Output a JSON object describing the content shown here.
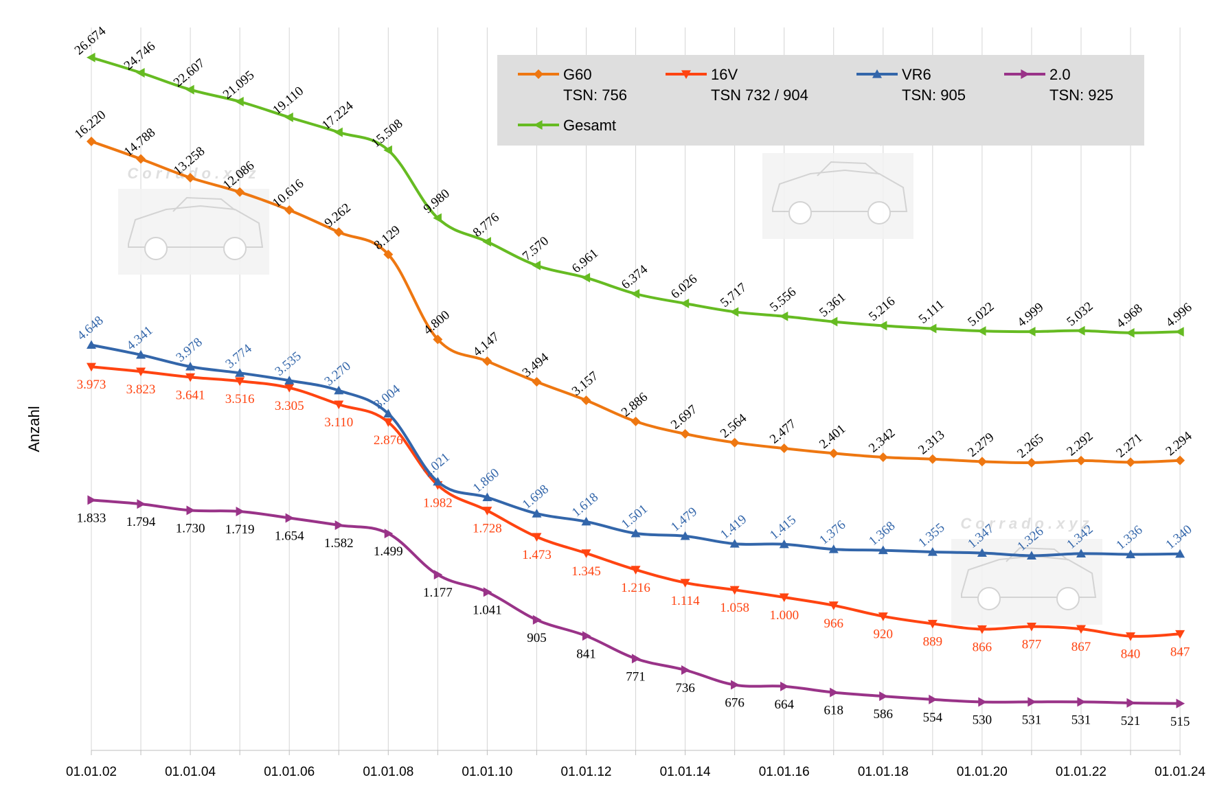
{
  "watermark": "Corrado.xyz",
  "chart_data": {
    "type": "line",
    "ylabel": "Anzahl",
    "xlabel": "",
    "x": [
      "01.01.02",
      "01.01.03",
      "01.01.04",
      "01.01.05",
      "01.01.06",
      "01.01.07",
      "01.01.08",
      "01.01.09",
      "01.01.10",
      "01.01.11",
      "01.01.12",
      "01.01.13",
      "01.01.14",
      "01.01.15",
      "01.01.16",
      "01.01.17",
      "01.01.18",
      "01.01.19",
      "01.01.20",
      "01.01.21",
      "01.01.22",
      "01.01.23",
      "01.01.24"
    ],
    "x_tick_labels": [
      "01.01.02",
      "",
      "01.01.04",
      "",
      "01.01.06",
      "",
      "01.01.08",
      "",
      "01.01.10",
      "",
      "01.01.12",
      "",
      "01.01.14",
      "",
      "01.01.16",
      "",
      "01.01.18",
      "",
      "01.01.20",
      "",
      "01.01.22",
      "",
      "01.01.24"
    ],
    "grid": "vertical",
    "legend_position": "top-right",
    "series": [
      {
        "key": "gesamt",
        "name": "Gesamt",
        "tsn": "",
        "color": "#66bb22",
        "label_color": "#000000",
        "marker": "tri-left",
        "label_pos": "above",
        "values": [
          26674,
          24746,
          22607,
          21095,
          19110,
          17224,
          15508,
          9980,
          8776,
          7570,
          6961,
          6374,
          6026,
          5717,
          5556,
          5361,
          5216,
          5111,
          5022,
          4999,
          5032,
          4968,
          4996
        ],
        "labels": [
          "26.674",
          "24.746",
          "22.607",
          "21.095",
          "19.110",
          "17.224",
          "15.508",
          "9.980",
          "8.776",
          "7.570",
          "6.961",
          "6.374",
          "6.026",
          "5.717",
          "5.556",
          "5.361",
          "5.216",
          "5.111",
          "5.022",
          "4.999",
          "5.032",
          "4.968",
          "4.996"
        ]
      },
      {
        "key": "g60",
        "name": "G60",
        "tsn": "TSN: 756",
        "color": "#ee7711",
        "label_color": "#000000",
        "marker": "diamond",
        "label_pos": "above",
        "values": [
          16220,
          14788,
          13258,
          12086,
          10616,
          9262,
          8129,
          4800,
          4147,
          3494,
          3157,
          2886,
          2697,
          2564,
          2477,
          2401,
          2342,
          2313,
          2279,
          2265,
          2292,
          2271,
          2294
        ],
        "labels": [
          "16.220",
          "14.788",
          "13.258",
          "12.086",
          "10.616",
          "9.262",
          "8.129",
          "4.800",
          "4.147",
          "3.494",
          "3.157",
          "2.886",
          "2.697",
          "2.564",
          "2.477",
          "2.401",
          "2.342",
          "2.313",
          "2.279",
          "2.265",
          "2.292",
          "2.271",
          "2.294"
        ]
      },
      {
        "key": "vr6",
        "name": "VR6",
        "tsn": "TSN: 905",
        "color": "#3366aa",
        "label_color": "#3366aa",
        "marker": "tri-up",
        "label_pos": "above",
        "values": [
          4648,
          4341,
          3978,
          3774,
          3535,
          3270,
          3004,
          2021,
          1860,
          1698,
          1618,
          1501,
          1479,
          1419,
          1415,
          1376,
          1368,
          1355,
          1347,
          1326,
          1342,
          1336,
          1340
        ],
        "labels": [
          "4.648",
          "4.341",
          "3.978",
          "3.774",
          "3.535",
          "3.270",
          "3.004",
          "2.021",
          "1.860",
          "1.698",
          "1.618",
          "1.501",
          "1.479",
          "1.419",
          "1.415",
          "1.376",
          "1.368",
          "1.355",
          "1.347",
          "1.326",
          "1.342",
          "1.336",
          "1.340"
        ]
      },
      {
        "key": "v16",
        "name": "16V",
        "tsn": "TSN 732 / 904",
        "color": "#ff4411",
        "label_color": "#ff4411",
        "marker": "tri-down",
        "label_pos": "below",
        "values": [
          3973,
          3823,
          3641,
          3516,
          3305,
          3110,
          2876,
          1982,
          1728,
          1473,
          1345,
          1216,
          1114,
          1058,
          1000,
          966,
          920,
          889,
          866,
          877,
          867,
          840,
          847
        ],
        "labels": [
          "3.973",
          "3.823",
          "3.641",
          "3.516",
          "3.305",
          "3.110",
          "2.876",
          "1.982",
          "1.728",
          "1.473",
          "1.345",
          "1.216",
          "1.114",
          "1.058",
          "1.000",
          "966",
          "920",
          "889",
          "866",
          "877",
          "867",
          "840",
          "847"
        ]
      },
      {
        "key": "two",
        "name": "2.0",
        "tsn": "TSN: 925",
        "color": "#993388",
        "label_color": "#000000",
        "marker": "tri-right",
        "label_pos": "below",
        "values": [
          1833,
          1794,
          1730,
          1719,
          1654,
          1582,
          1499,
          1177,
          1041,
          905,
          841,
          771,
          736,
          676,
          664,
          618,
          586,
          554,
          530,
          531,
          531,
          521,
          515
        ],
        "labels": [
          "1.833",
          "1.794",
          "1.730",
          "1.719",
          "1.654",
          "1.582",
          "1.499",
          "1.177",
          "1.041",
          "905",
          "841",
          "771",
          "736",
          "676",
          "664",
          "618",
          "586",
          "554",
          "530",
          "531",
          "531",
          "521",
          "515"
        ]
      }
    ],
    "legend_order": [
      "g60",
      "v16",
      "vr6",
      "two",
      "gesamt"
    ]
  }
}
